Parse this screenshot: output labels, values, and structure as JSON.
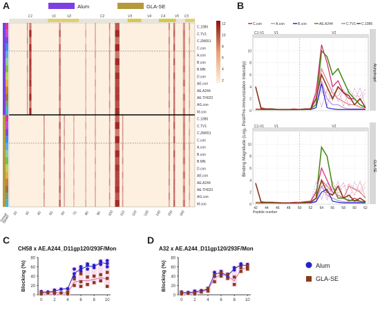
{
  "panels": {
    "a": "A",
    "b": "B",
    "c": "C",
    "d": "D"
  },
  "colors": {
    "alum": "#7b3fe4",
    "gla": "#b59a3c",
    "heat_low": "#fdf0e0",
    "heat_high": "#a11a1a",
    "blue": "#2323c8",
    "brown": "#8a3a1a",
    "pink": "#e8a0c8"
  },
  "heatmap": {
    "legend": {
      "alum": "Alum",
      "gla": "GLA-SE"
    },
    "regions": [
      "C1",
      "V1",
      "V2",
      "C2",
      "V3",
      "V4",
      "C4",
      "V5",
      "C5"
    ],
    "strains": [
      "C.1086",
      "C.TV1",
      "C.ZM651",
      "C.con",
      "A.con",
      "B.con",
      "B.MN",
      "D.con",
      "AE.con",
      "AE.A244",
      "AE.TH023",
      "AG.con",
      "M.con"
    ],
    "xticks": [
      "20",
      "30",
      "40",
      "50",
      "60",
      "70",
      "80",
      "90",
      "100",
      "110",
      "120",
      "130",
      "140",
      "150",
      "160"
    ],
    "colorbar_ticks": [
      "12",
      "10",
      "8",
      "6",
      "4",
      "2"
    ],
    "row_labels": {
      "group": "Group",
      "strain": "Strain"
    }
  },
  "chart_data": [
    {
      "type": "line",
      "panel": "B",
      "ylabel": "Binding Magnitude (Log₂ Post/Pre-Immunization Intensity)",
      "xlabel": "Peptide number",
      "x_ticks": [
        "42",
        "44",
        "46",
        "48",
        "50",
        "52",
        "54",
        "56",
        "58",
        "60",
        "62"
      ],
      "y_ticks": [
        "0",
        "2",
        "4",
        "6",
        "8",
        "10"
      ],
      "ylim": [
        0,
        12
      ],
      "strips": [
        "Aluhydrogel",
        "GLA-SE"
      ],
      "region_labels": [
        "C1-V1",
        "V1",
        "V2"
      ],
      "series": [
        {
          "name": "C.con",
          "color": "#d0206a"
        },
        {
          "name": "A.con",
          "color": "#b98ee0"
        },
        {
          "name": "B.con",
          "color": "#2323c8"
        },
        {
          "name": "AE.A244",
          "color": "#4a8a1a"
        },
        {
          "name": "C.TV1",
          "color": "#e07a7a"
        },
        {
          "name": "C.1086",
          "color": "#8a3a1a"
        }
      ]
    },
    {
      "type": "scatter",
      "panel": "C",
      "title": "CH58 x AE.A244_D11gp120/293F/Mon",
      "ylabel": "Blocking (%)",
      "x_ticks": [
        "0",
        "2",
        "4",
        "6",
        "8",
        "10"
      ],
      "y_ticks": [
        "0",
        "20",
        "40",
        "60",
        "80"
      ],
      "xlim": [
        -0.5,
        10.5
      ],
      "ylim": [
        0,
        80
      ],
      "series": [
        {
          "name": "Alum",
          "x": [
            0,
            0,
            1,
            2,
            2,
            3,
            4,
            5,
            5,
            5,
            6,
            6,
            6,
            7,
            7,
            7,
            8,
            8,
            9,
            9,
            9,
            10,
            10,
            10
          ],
          "y": [
            4,
            7,
            6,
            10,
            5,
            12,
            13,
            38,
            45,
            55,
            50,
            55,
            60,
            55,
            63,
            66,
            63,
            58,
            65,
            70,
            72,
            60,
            67,
            73
          ]
        },
        {
          "name": "GLA-SE",
          "x": [
            0,
            0,
            1,
            2,
            2,
            3,
            4,
            4,
            5,
            5,
            6,
            6,
            6,
            7,
            7,
            8,
            8,
            9,
            9,
            10,
            10,
            10
          ],
          "y": [
            2,
            5,
            4,
            3,
            6,
            4,
            2,
            6,
            20,
            34,
            18,
            28,
            45,
            22,
            38,
            26,
            40,
            30,
            43,
            18,
            35,
            48
          ]
        }
      ]
    },
    {
      "type": "scatter",
      "panel": "D",
      "title": "A32 x AE.A244_D11gp120/293F/Mon",
      "ylabel": "Blocking (%)",
      "x_ticks": [
        "0",
        "2",
        "4",
        "6",
        "8",
        "10"
      ],
      "y_ticks": [
        "0",
        "20",
        "40",
        "60",
        "80"
      ],
      "xlim": [
        -0.5,
        10.5
      ],
      "ylim": [
        0,
        80
      ],
      "series": [
        {
          "name": "Alum",
          "x": [
            0,
            0,
            1,
            2,
            2,
            3,
            4,
            5,
            5,
            6,
            6,
            7,
            7,
            8,
            8,
            9,
            9,
            10,
            10
          ],
          "y": [
            3,
            6,
            5,
            8,
            4,
            9,
            12,
            40,
            48,
            45,
            50,
            38,
            44,
            53,
            58,
            62,
            66,
            60,
            65
          ]
        },
        {
          "name": "GLA-SE",
          "x": [
            0,
            0,
            1,
            2,
            2,
            3,
            4,
            4,
            5,
            5,
            6,
            6,
            7,
            7,
            8,
            8,
            9,
            9,
            10,
            10
          ],
          "y": [
            2,
            5,
            3,
            2,
            5,
            6,
            8,
            14,
            28,
            42,
            40,
            48,
            35,
            44,
            22,
            38,
            50,
            58,
            55,
            62
          ]
        }
      ]
    }
  ]
}
